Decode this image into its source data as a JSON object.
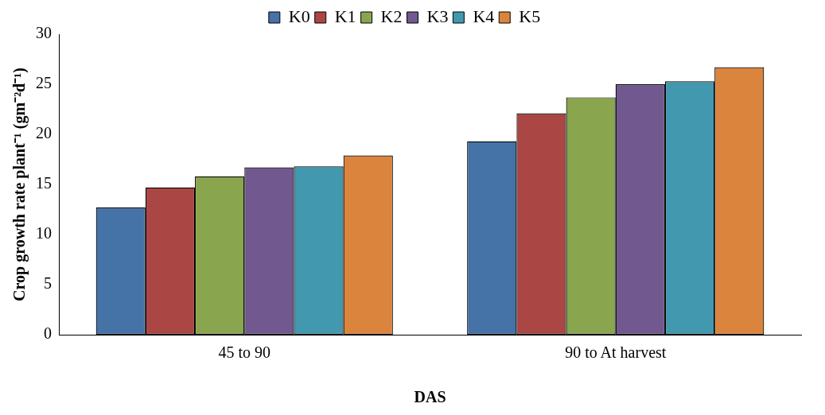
{
  "chart_data": {
    "type": "bar",
    "xlabel": "DAS",
    "ylabel": "Crop growth rate plant⁻¹ (gm⁻²d⁻¹)",
    "categories": [
      "45 to 90",
      "90 to At harvest"
    ],
    "series": [
      {
        "name": "K0",
        "color": "#4572a7",
        "values": [
          12.7,
          19.3
        ]
      },
      {
        "name": "K1",
        "color": "#aa4643",
        "values": [
          14.7,
          22.1
        ]
      },
      {
        "name": "K2",
        "color": "#89a54e",
        "values": [
          15.8,
          23.7
        ]
      },
      {
        "name": "K3",
        "color": "#71588f",
        "values": [
          16.7,
          25.0
        ]
      },
      {
        "name": "K4",
        "color": "#4198af",
        "values": [
          16.8,
          25.3
        ]
      },
      {
        "name": "K5",
        "color": "#db843d",
        "values": [
          17.9,
          26.7
        ]
      }
    ],
    "ylim": [
      0,
      30
    ],
    "yticks": [
      0,
      5,
      10,
      15,
      20,
      25,
      30
    ],
    "grid": false,
    "legend": "top"
  }
}
